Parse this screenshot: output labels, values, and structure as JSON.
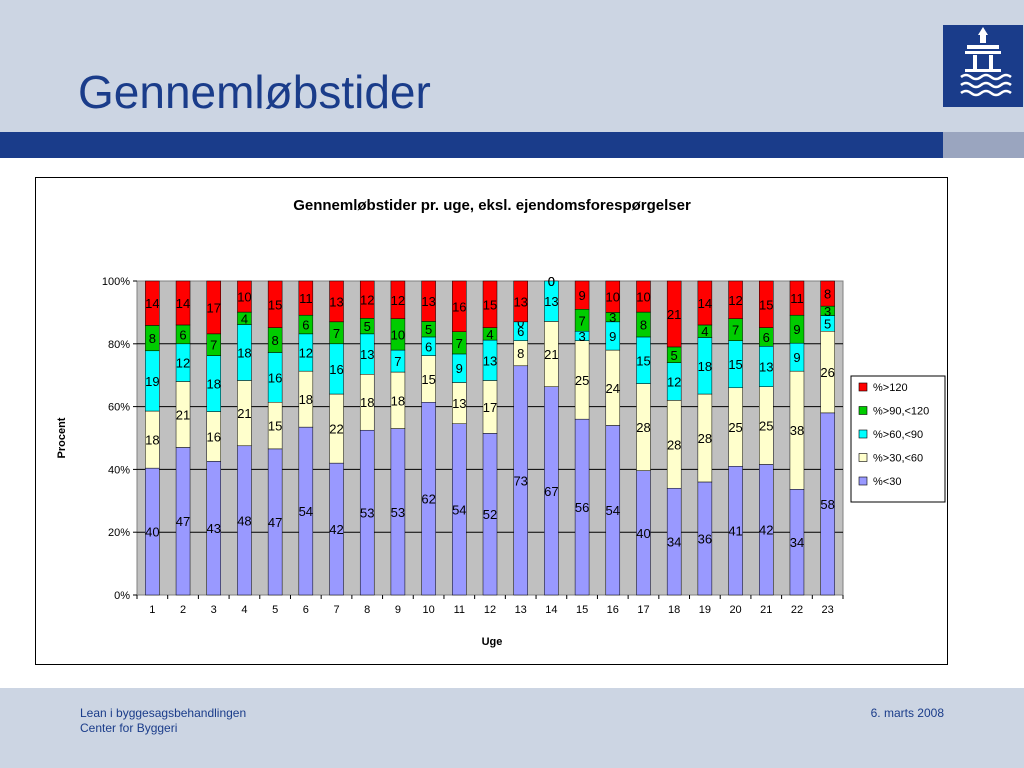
{
  "slide": {
    "title": "Gennemløbstider",
    "footer_left_line1": "Lean i byggesagsbehandlingen",
    "footer_left_line2": "Center for Byggeri",
    "footer_right": "6. marts 2008"
  },
  "colors": {
    "header_bg": "#ccd5e3",
    "brand_blue": "#1a3c8a",
    "plot_bg": "#c0c0c0"
  },
  "logo": {
    "icon": "city-coat-of-arms-icon"
  },
  "chart_data": {
    "type": "bar",
    "stacked": true,
    "percent": true,
    "title": "Gennemløbstider pr. uge, eksl. ejendomsforespørgelser",
    "xlabel": "Uge",
    "ylabel": "Procent",
    "ylim": [
      0,
      100
    ],
    "yticks": [
      "0%",
      "20%",
      "40%",
      "60%",
      "80%",
      "100%"
    ],
    "grid": true,
    "legend": "right",
    "categories": [
      "1",
      "2",
      "3",
      "4",
      "5",
      "6",
      "7",
      "8",
      "9",
      "10",
      "11",
      "12",
      "13",
      "14",
      "15",
      "16",
      "17",
      "18",
      "19",
      "20",
      "21",
      "22",
      "23"
    ],
    "series": [
      {
        "name": "%<30",
        "color": "#9999ff",
        "values": [
          40,
          47,
          43,
          48,
          47,
          54,
          42,
          53,
          53,
          62,
          54,
          52,
          73,
          67,
          56,
          54,
          40,
          34,
          36,
          41,
          42,
          34,
          58
        ]
      },
      {
        "name": "%>30,<60",
        "color": "#ffffcc",
        "values": [
          18,
          21,
          16,
          21,
          15,
          18,
          22,
          18,
          18,
          15,
          13,
          17,
          8,
          21,
          25,
          24,
          28,
          28,
          28,
          25,
          25,
          38,
          26
        ]
      },
      {
        "name": "%>60,<90",
        "color": "#00ffff",
        "values": [
          19,
          12,
          18,
          18,
          16,
          12,
          16,
          13,
          7,
          6,
          9,
          13,
          6,
          13,
          3,
          9,
          15,
          12,
          18,
          15,
          13,
          9,
          5
        ]
      },
      {
        "name": "%>90,<120",
        "color": "#00cc00",
        "values": [
          8,
          6,
          7,
          4,
          8,
          6,
          7,
          5,
          10,
          5,
          7,
          4,
          0,
          0,
          7,
          3,
          8,
          5,
          4,
          7,
          6,
          9,
          3
        ]
      },
      {
        "name": "%>120",
        "color": "#ff0000",
        "values": [
          14,
          14,
          17,
          10,
          15,
          11,
          13,
          12,
          12,
          13,
          16,
          15,
          13,
          0,
          9,
          10,
          10,
          21,
          14,
          12,
          15,
          11,
          8
        ]
      }
    ]
  }
}
